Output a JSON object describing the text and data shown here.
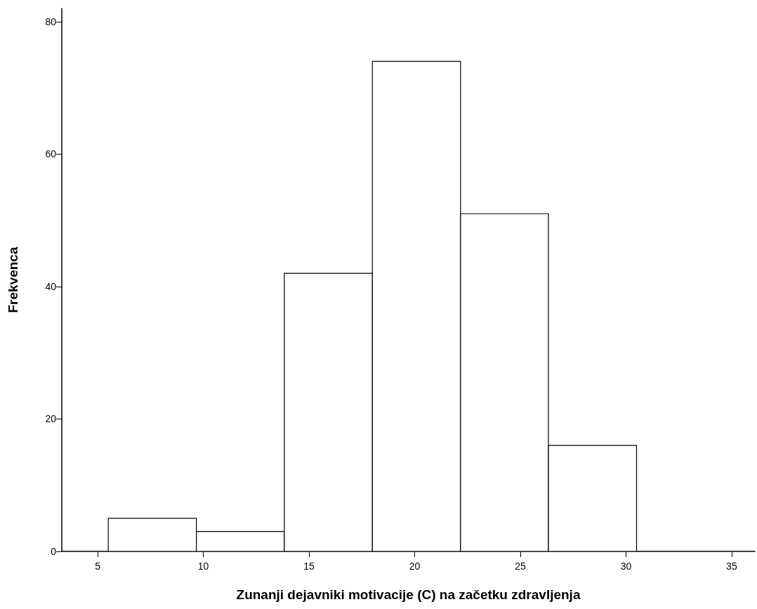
{
  "chart_data": {
    "type": "histogram",
    "xlabel": "Zunanji dejavniki motivacije (C) na začetku zdravljenja",
    "ylabel": "Frekvenca",
    "bins": [
      5.5,
      9.67,
      13.83,
      18.0,
      22.17,
      26.33,
      30.5
    ],
    "values": [
      5,
      3,
      42,
      74,
      51,
      16
    ],
    "color": "#ffffff",
    "xlim": [
      3.3,
      36.1
    ],
    "xticks": [
      5,
      10,
      15,
      20,
      25,
      30,
      35
    ],
    "ylim": [
      0,
      82
    ],
    "yticks": [
      0,
      20,
      40,
      60,
      80
    ],
    "grid": false
  }
}
